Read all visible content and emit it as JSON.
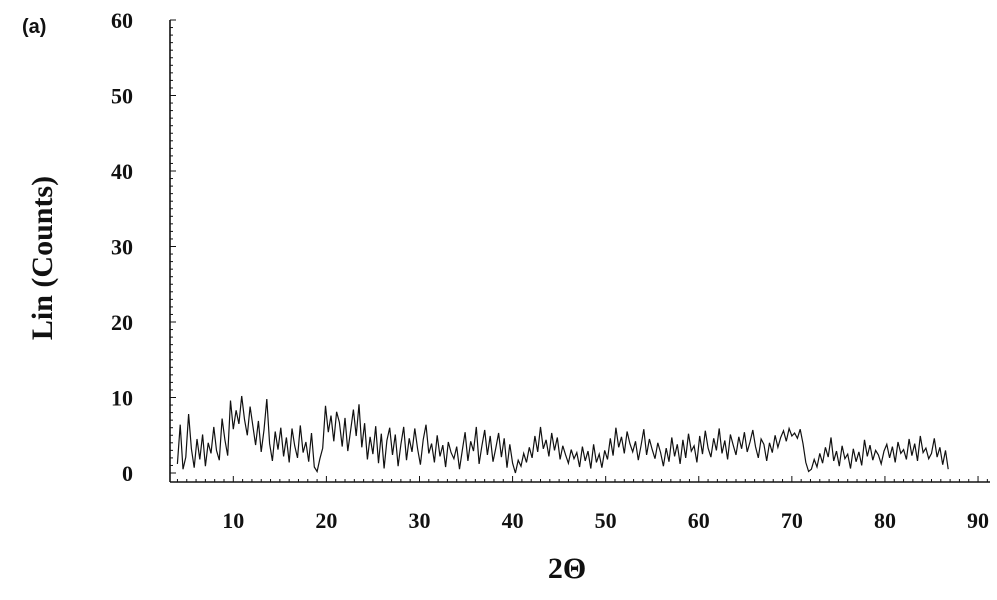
{
  "panel_tag": "(a)",
  "chart_data": {
    "type": "line",
    "title": "",
    "xlabel": "2Θ",
    "ylabel": "Lin (Counts)",
    "xlim": [
      3.2,
      91.5
    ],
    "ylim": [
      0,
      60
    ],
    "xticks": [
      10,
      20,
      30,
      40,
      50,
      60,
      70,
      80,
      90
    ],
    "yticks": [
      0,
      10,
      20,
      30,
      40,
      50,
      60
    ],
    "grid": false,
    "legend": "none",
    "line_color": "#111111",
    "series": [
      {
        "x_start": 4,
        "x_step": 0.3,
        "values": [
          1.2,
          6.4,
          0.5,
          2.1,
          7.8,
          3.2,
          0.7,
          4.5,
          1.8,
          5.1,
          0.9,
          4.0,
          2.6,
          6.1,
          3.0,
          1.7,
          7.2,
          4.4,
          2.3,
          9.6,
          5.8,
          8.3,
          6.5,
          10.2,
          7.1,
          5.0,
          8.8,
          6.2,
          3.7,
          6.9,
          2.8,
          5.7,
          9.8,
          3.9,
          1.6,
          5.5,
          3.1,
          6.0,
          2.2,
          4.7,
          1.4,
          5.9,
          3.6,
          2.0,
          6.3,
          2.7,
          4.1,
          1.5,
          5.3,
          0.8,
          0.2,
          1.9,
          3.3,
          8.9,
          5.4,
          7.6,
          4.2,
          8.1,
          6.7,
          3.5,
          7.3,
          2.9,
          5.6,
          8.4,
          4.9,
          9.1,
          3.4,
          6.6,
          1.8,
          4.8,
          2.5,
          6.2,
          1.3,
          5.2,
          0.6,
          4.3,
          6.0,
          2.4,
          5.1,
          0.9,
          3.8,
          6.1,
          1.7,
          4.6,
          2.8,
          5.9,
          3.2,
          1.1,
          4.4,
          6.4,
          2.6,
          3.9,
          1.4,
          5.0,
          2.2,
          3.7,
          0.8,
          4.1,
          2.7,
          1.9,
          3.5,
          0.5,
          3.0,
          5.4,
          1.6,
          4.2,
          2.9,
          6.1,
          1.2,
          3.6,
          5.7,
          2.4,
          4.9,
          1.5,
          3.3,
          5.3,
          2.1,
          4.6,
          0.7,
          3.8,
          1.3,
          0.0,
          1.7,
          0.9,
          2.6,
          1.4,
          3.4,
          2.0,
          4.9,
          2.8,
          6.1,
          3.2,
          4.4,
          2.2,
          5.3,
          3.0,
          4.7,
          1.8,
          3.6,
          2.4,
          1.3,
          3.1,
          1.9,
          2.7,
          0.8,
          3.5,
          1.6,
          2.9,
          0.6,
          3.8,
          1.4,
          2.5,
          0.7,
          3.0,
          1.8,
          4.6,
          2.3,
          6.0,
          3.4,
          4.8,
          2.6,
          5.5,
          3.9,
          2.8,
          4.2,
          1.7,
          3.6,
          5.8,
          2.4,
          4.5,
          3.1,
          1.9,
          4.0,
          2.7,
          0.9,
          3.3,
          1.5,
          4.7,
          2.2,
          3.8,
          1.2,
          4.4,
          2.0,
          5.2,
          2.9,
          3.6,
          1.4,
          4.9,
          2.5,
          5.6,
          3.3,
          2.1,
          4.6,
          3.0,
          5.9,
          2.6,
          4.3,
          1.8,
          5.1,
          3.7,
          2.4,
          4.8,
          3.2,
          5.4,
          2.8,
          4.1,
          5.7,
          3.5,
          2.0,
          4.5,
          3.8,
          1.6,
          4.0,
          2.7,
          5.0,
          3.4,
          4.7,
          5.6,
          4.2,
          5.9,
          4.9,
          5.3,
          4.6,
          5.8,
          3.9,
          1.4,
          0.2,
          0.5,
          1.8,
          0.8,
          2.6,
          1.3,
          3.4,
          2.1,
          4.7,
          1.6,
          2.9,
          0.9,
          3.6,
          1.9,
          2.5,
          0.6,
          3.2,
          1.5,
          2.8,
          1.0,
          4.4,
          2.2,
          3.7,
          1.7,
          3.0,
          2.4,
          1.2,
          2.9,
          3.8,
          2.0,
          3.5,
          1.4,
          4.1,
          2.6,
          3.1,
          1.8,
          4.5,
          2.3,
          3.9,
          1.6,
          4.9,
          2.7,
          3.3,
          1.9,
          2.6,
          4.6,
          2.1,
          3.4,
          1.1,
          3.0,
          0.5
        ]
      }
    ]
  }
}
